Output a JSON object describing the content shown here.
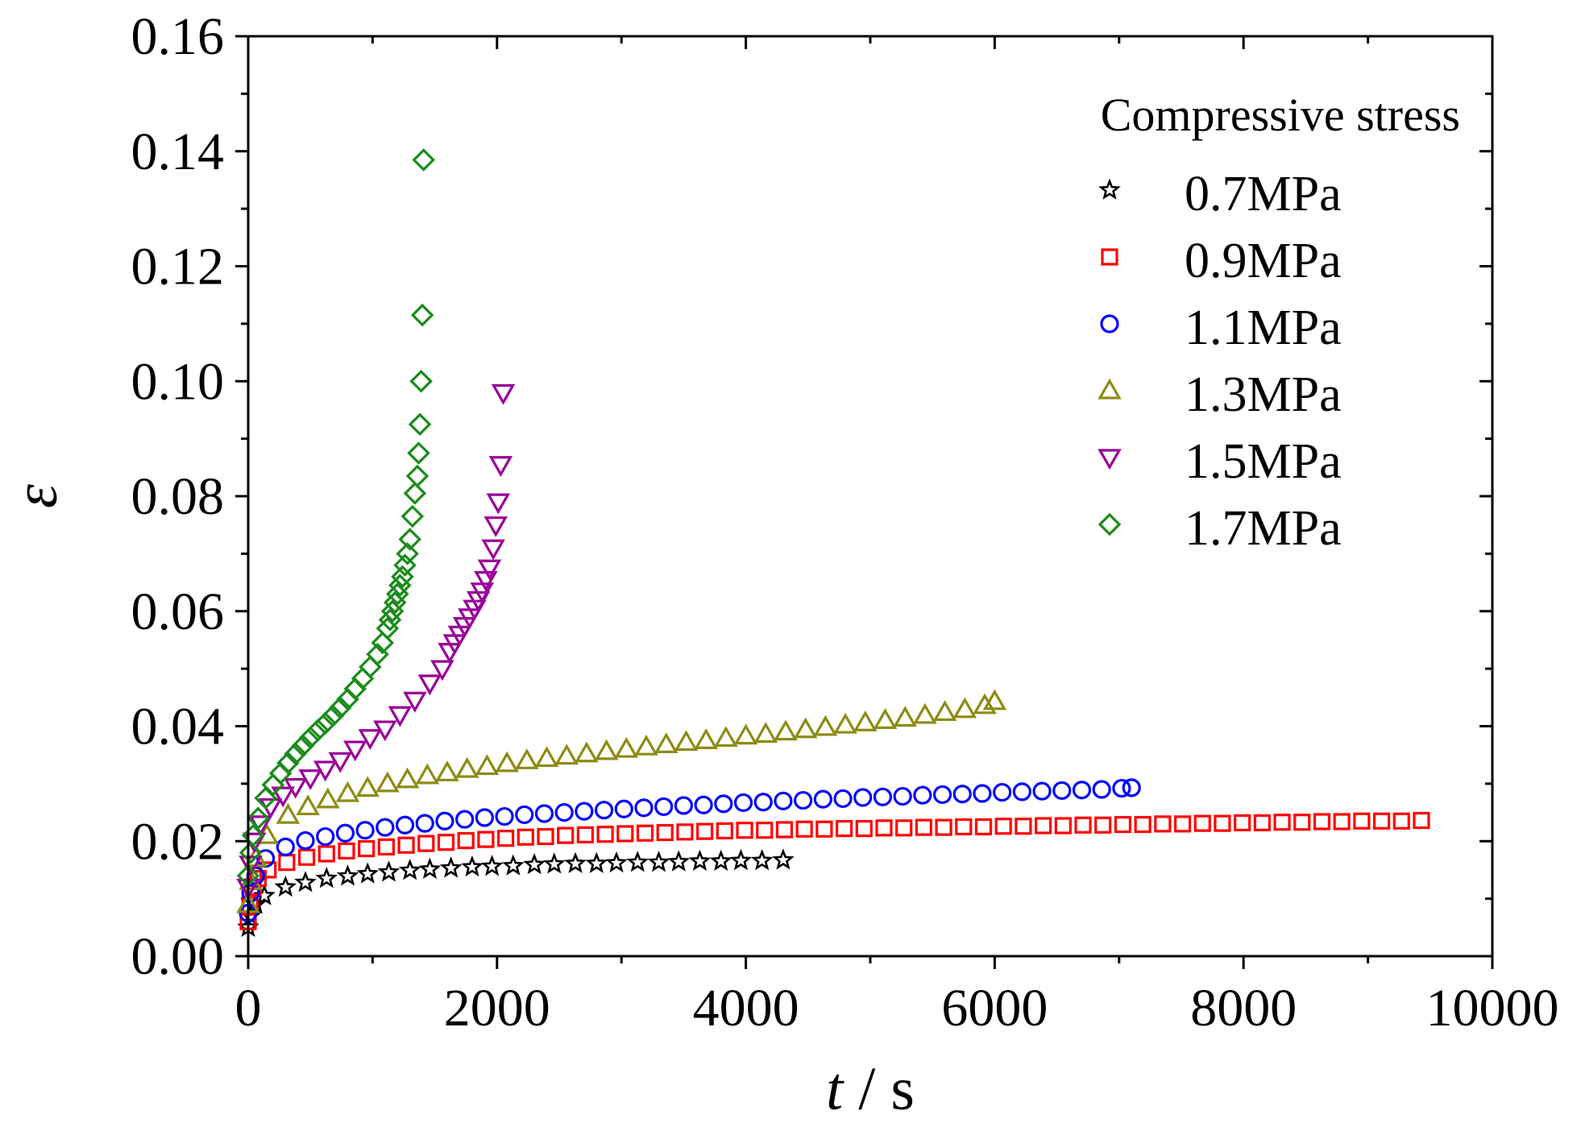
{
  "chart_data": {
    "type": "scatter",
    "title": "",
    "xlabel_italic": "t",
    "xlabel_rest": " / s",
    "ylabel": "ε",
    "xlim": [
      0,
      10000
    ],
    "ylim": [
      0,
      0.16
    ],
    "x_ticks": [
      0,
      2000,
      4000,
      6000,
      8000,
      10000
    ],
    "x_tick_labels": [
      "0",
      "2000",
      "4000",
      "6000",
      "8000",
      "10000"
    ],
    "y_ticks": [
      0,
      0.02,
      0.04,
      0.06,
      0.08,
      0.1,
      0.12,
      0.14,
      0.16
    ],
    "y_tick_labels": [
      "0.00",
      "0.02",
      "0.04",
      "0.06",
      "0.08",
      "0.10",
      "0.12",
      "0.14",
      "0.16"
    ],
    "legend_title": "Compressive stress",
    "legend_position": "top-right",
    "series": [
      {
        "name": "0.7MPa",
        "marker": "star",
        "color": "#000000",
        "points": [
          [
            0,
            0.005
          ],
          [
            20,
            0.007
          ],
          [
            60,
            0.009
          ],
          [
            130,
            0.0105
          ],
          [
            300,
            0.012
          ],
          [
            460,
            0.0128
          ],
          [
            630,
            0.0135
          ],
          [
            800,
            0.0139
          ],
          [
            960,
            0.0143
          ],
          [
            1130,
            0.0146
          ],
          [
            1300,
            0.0149
          ],
          [
            1460,
            0.0151
          ],
          [
            1630,
            0.0153
          ],
          [
            1800,
            0.0155
          ],
          [
            1960,
            0.0156
          ],
          [
            2130,
            0.0157
          ],
          [
            2300,
            0.0159
          ],
          [
            2460,
            0.016
          ],
          [
            2630,
            0.0161
          ],
          [
            2800,
            0.0161
          ],
          [
            2960,
            0.0162
          ],
          [
            3130,
            0.0163
          ],
          [
            3300,
            0.0163
          ],
          [
            3460,
            0.0164
          ],
          [
            3630,
            0.0165
          ],
          [
            3800,
            0.0165
          ],
          [
            3960,
            0.0166
          ],
          [
            4130,
            0.0166
          ],
          [
            4300,
            0.0167
          ]
        ]
      },
      {
        "name": "0.9MPa",
        "marker": "square",
        "color": "#ff0000",
        "points": [
          [
            0,
            0.006
          ],
          [
            15,
            0.009
          ],
          [
            40,
            0.012
          ],
          [
            80,
            0.0135
          ],
          [
            160,
            0.015
          ],
          [
            310,
            0.0163
          ],
          [
            470,
            0.0172
          ],
          [
            630,
            0.0178
          ],
          [
            790,
            0.0183
          ],
          [
            950,
            0.0187
          ],
          [
            1110,
            0.019
          ],
          [
            1270,
            0.0193
          ],
          [
            1430,
            0.0196
          ],
          [
            1590,
            0.0198
          ],
          [
            1750,
            0.0201
          ],
          [
            1910,
            0.0203
          ],
          [
            2070,
            0.0205
          ],
          [
            2230,
            0.0207
          ],
          [
            2390,
            0.0208
          ],
          [
            2550,
            0.021
          ],
          [
            2710,
            0.0211
          ],
          [
            2870,
            0.0212
          ],
          [
            3030,
            0.0213
          ],
          [
            3190,
            0.0214
          ],
          [
            3350,
            0.0215
          ],
          [
            3510,
            0.0216
          ],
          [
            3670,
            0.0217
          ],
          [
            3830,
            0.0218
          ],
          [
            3990,
            0.0219
          ],
          [
            4150,
            0.0219
          ],
          [
            4310,
            0.022
          ],
          [
            4470,
            0.0221
          ],
          [
            4630,
            0.0221
          ],
          [
            4790,
            0.0222
          ],
          [
            4950,
            0.0222
          ],
          [
            5110,
            0.0223
          ],
          [
            5270,
            0.0223
          ],
          [
            5430,
            0.0224
          ],
          [
            5590,
            0.0224
          ],
          [
            5750,
            0.0225
          ],
          [
            5910,
            0.0225
          ],
          [
            6070,
            0.0226
          ],
          [
            6230,
            0.0226
          ],
          [
            6390,
            0.0227
          ],
          [
            6550,
            0.0227
          ],
          [
            6710,
            0.0228
          ],
          [
            6870,
            0.0228
          ],
          [
            7030,
            0.0229
          ],
          [
            7190,
            0.0229
          ],
          [
            7350,
            0.023
          ],
          [
            7510,
            0.023
          ],
          [
            7670,
            0.0231
          ],
          [
            7830,
            0.0231
          ],
          [
            7990,
            0.0232
          ],
          [
            8150,
            0.0232
          ],
          [
            8310,
            0.0233
          ],
          [
            8470,
            0.0233
          ],
          [
            8630,
            0.0234
          ],
          [
            8790,
            0.0234
          ],
          [
            8950,
            0.0235
          ],
          [
            9110,
            0.0235
          ],
          [
            9270,
            0.0235
          ],
          [
            9430,
            0.0236
          ]
        ]
      },
      {
        "name": "1.1MPa",
        "marker": "circle",
        "color": "#0000ff",
        "points": [
          [
            0,
            0.0075
          ],
          [
            20,
            0.011
          ],
          [
            60,
            0.014
          ],
          [
            140,
            0.017
          ],
          [
            300,
            0.019
          ],
          [
            460,
            0.0201
          ],
          [
            620,
            0.0208
          ],
          [
            780,
            0.0214
          ],
          [
            940,
            0.0219
          ],
          [
            1100,
            0.0224
          ],
          [
            1260,
            0.0228
          ],
          [
            1420,
            0.0231
          ],
          [
            1580,
            0.0235
          ],
          [
            1740,
            0.0238
          ],
          [
            1900,
            0.0241
          ],
          [
            2060,
            0.0243
          ],
          [
            2220,
            0.0246
          ],
          [
            2380,
            0.0248
          ],
          [
            2540,
            0.025
          ],
          [
            2700,
            0.0252
          ],
          [
            2860,
            0.0254
          ],
          [
            3020,
            0.0256
          ],
          [
            3180,
            0.0258
          ],
          [
            3340,
            0.026
          ],
          [
            3500,
            0.0262
          ],
          [
            3660,
            0.0263
          ],
          [
            3820,
            0.0265
          ],
          [
            3980,
            0.0267
          ],
          [
            4140,
            0.0268
          ],
          [
            4300,
            0.027
          ],
          [
            4460,
            0.0271
          ],
          [
            4620,
            0.0273
          ],
          [
            4780,
            0.0274
          ],
          [
            4940,
            0.0276
          ],
          [
            5100,
            0.0277
          ],
          [
            5260,
            0.0278
          ],
          [
            5420,
            0.028
          ],
          [
            5580,
            0.0281
          ],
          [
            5740,
            0.0282
          ],
          [
            5900,
            0.0283
          ],
          [
            6060,
            0.0285
          ],
          [
            6220,
            0.0286
          ],
          [
            6380,
            0.0287
          ],
          [
            6540,
            0.0288
          ],
          [
            6700,
            0.0289
          ],
          [
            6860,
            0.029
          ],
          [
            7020,
            0.0292
          ],
          [
            7100,
            0.0293
          ]
        ]
      },
      {
        "name": "1.3MPa",
        "marker": "triangle-up",
        "color": "#8c8c14",
        "points": [
          [
            0,
            0.009
          ],
          [
            20,
            0.013
          ],
          [
            60,
            0.017
          ],
          [
            150,
            0.021
          ],
          [
            320,
            0.0245
          ],
          [
            480,
            0.026
          ],
          [
            640,
            0.0272
          ],
          [
            800,
            0.0283
          ],
          [
            960,
            0.0292
          ],
          [
            1120,
            0.03
          ],
          [
            1280,
            0.0307
          ],
          [
            1440,
            0.0314
          ],
          [
            1600,
            0.0319
          ],
          [
            1760,
            0.0325
          ],
          [
            1920,
            0.033
          ],
          [
            2080,
            0.0335
          ],
          [
            2240,
            0.034
          ],
          [
            2400,
            0.0344
          ],
          [
            2560,
            0.0348
          ],
          [
            2720,
            0.0352
          ],
          [
            2880,
            0.0356
          ],
          [
            3040,
            0.036
          ],
          [
            3200,
            0.0364
          ],
          [
            3360,
            0.0368
          ],
          [
            3520,
            0.0372
          ],
          [
            3680,
            0.0375
          ],
          [
            3840,
            0.0379
          ],
          [
            4000,
            0.0383
          ],
          [
            4160,
            0.0386
          ],
          [
            4320,
            0.039
          ],
          [
            4480,
            0.0394
          ],
          [
            4640,
            0.0398
          ],
          [
            4800,
            0.0402
          ],
          [
            4960,
            0.0406
          ],
          [
            5120,
            0.041
          ],
          [
            5280,
            0.0414
          ],
          [
            5440,
            0.0419
          ],
          [
            5600,
            0.0424
          ],
          [
            5760,
            0.0429
          ],
          [
            5920,
            0.0436
          ],
          [
            6000,
            0.0443
          ]
        ]
      },
      {
        "name": "1.5MPa",
        "marker": "triangle-down",
        "color": "#990099",
        "points": [
          [
            0,
            0.012
          ],
          [
            20,
            0.016
          ],
          [
            50,
            0.02
          ],
          [
            100,
            0.023
          ],
          [
            180,
            0.026
          ],
          [
            280,
            0.028
          ],
          [
            380,
            0.0295
          ],
          [
            500,
            0.031
          ],
          [
            620,
            0.0325
          ],
          [
            740,
            0.034
          ],
          [
            860,
            0.036
          ],
          [
            980,
            0.038
          ],
          [
            1100,
            0.0395
          ],
          [
            1220,
            0.042
          ],
          [
            1340,
            0.0445
          ],
          [
            1460,
            0.0475
          ],
          [
            1560,
            0.05
          ],
          [
            1620,
            0.053
          ],
          [
            1660,
            0.0545
          ],
          [
            1700,
            0.056
          ],
          [
            1740,
            0.0575
          ],
          [
            1780,
            0.059
          ],
          [
            1820,
            0.0605
          ],
          [
            1850,
            0.062
          ],
          [
            1880,
            0.0635
          ],
          [
            1910,
            0.0655
          ],
          [
            1940,
            0.0675
          ],
          [
            1970,
            0.071
          ],
          [
            1990,
            0.075
          ],
          [
            2010,
            0.079
          ],
          [
            2030,
            0.0855
          ],
          [
            2050,
            0.098
          ]
        ]
      },
      {
        "name": "1.7MPa",
        "marker": "diamond",
        "color": "#1a8c1a",
        "points": [
          [
            0,
            0.014
          ],
          [
            20,
            0.018
          ],
          [
            40,
            0.021
          ],
          [
            80,
            0.024
          ],
          [
            140,
            0.0275
          ],
          [
            200,
            0.0298
          ],
          [
            260,
            0.0318
          ],
          [
            320,
            0.0336
          ],
          [
            380,
            0.0352
          ],
          [
            440,
            0.0366
          ],
          [
            500,
            0.038
          ],
          [
            560,
            0.0393
          ],
          [
            620,
            0.0405
          ],
          [
            680,
            0.0418
          ],
          [
            740,
            0.0432
          ],
          [
            800,
            0.0447
          ],
          [
            860,
            0.0465
          ],
          [
            920,
            0.0483
          ],
          [
            980,
            0.0503
          ],
          [
            1040,
            0.0525
          ],
          [
            1080,
            0.0545
          ],
          [
            1120,
            0.057
          ],
          [
            1140,
            0.0585
          ],
          [
            1160,
            0.06
          ],
          [
            1180,
            0.0615
          ],
          [
            1200,
            0.063
          ],
          [
            1220,
            0.0645
          ],
          [
            1240,
            0.066
          ],
          [
            1260,
            0.068
          ],
          [
            1280,
            0.07
          ],
          [
            1300,
            0.0725
          ],
          [
            1320,
            0.0765
          ],
          [
            1340,
            0.0805
          ],
          [
            1360,
            0.0835
          ],
          [
            1370,
            0.0875
          ],
          [
            1380,
            0.0925
          ],
          [
            1390,
            0.1
          ],
          [
            1400,
            0.1115
          ],
          [
            1410,
            0.1385
          ]
        ]
      }
    ]
  }
}
